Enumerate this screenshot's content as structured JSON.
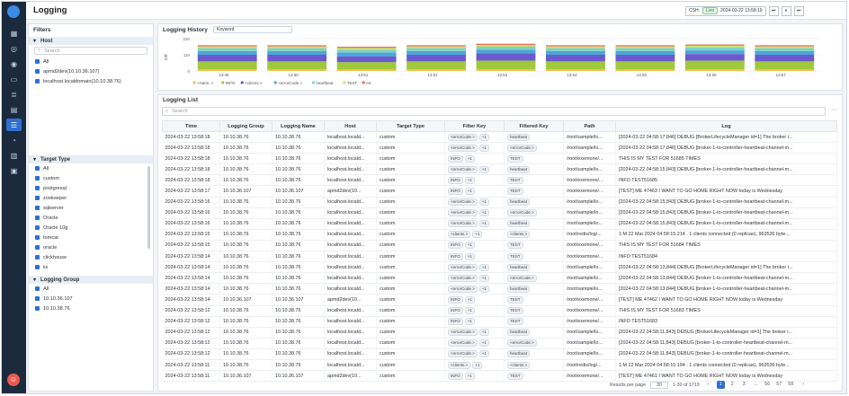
{
  "app": {
    "title": "Logging"
  },
  "nav": {
    "icons": [
      "dashboard-icon",
      "topology-icon",
      "eye-icon",
      "monitor-icon",
      "database-icon",
      "chart-icon",
      "logging-icon",
      "bell-icon",
      "report-icon",
      "document-icon"
    ],
    "active_index": 6
  },
  "time_control": {
    "label": "CSH:",
    "live": "Live",
    "datetime": "2024-03-22 13:58:19",
    "buttons": [
      "⏮",
      "⏸",
      "⏭"
    ]
  },
  "filters": {
    "title": "Filters",
    "host": {
      "title": "Host",
      "search_placeholder": "Search",
      "items": [
        "All",
        "apmd2dev(10.10.36.107)",
        "localhost.localdomain(10.10.38.76)"
      ]
    },
    "target_type": {
      "title": "Target Type",
      "items": [
        "All",
        "custom",
        "postgresql",
        "zookeeper",
        "sqlserver",
        "Oracle",
        "Oracle 10g",
        "tomcat",
        "oracle",
        "clickhouse",
        "iis"
      ]
    },
    "logging_group": {
      "title": "Logging Group",
      "items": [
        "All",
        "10.10.36.107",
        "10.10.38.76"
      ]
    }
  },
  "history": {
    "title": "Logging History",
    "keyword": "Keyword"
  },
  "chart_data": {
    "type": "bar",
    "ylabel": "cnt",
    "yticks": [
      "220",
      "110",
      "0"
    ],
    "ylim": [
      0,
      220
    ],
    "categories": [
      "13:49",
      "13:50",
      "13:51",
      "13:52",
      "13:53",
      "13:54",
      "13:55",
      "13:56",
      "13:57"
    ],
    "series": [
      {
        "name": "<Hann..>",
        "color": "#f2c14e",
        "values": [
          10,
          10,
          10,
          10,
          10,
          10,
          10,
          10,
          10
        ]
      },
      {
        "name": "INFO",
        "color": "#9fc93b",
        "values": [
          55,
          55,
          50,
          55,
          60,
          55,
          55,
          60,
          55
        ]
      },
      {
        "name": "<clients.>",
        "color": "#6a5acd",
        "values": [
          45,
          45,
          40,
          45,
          50,
          45,
          45,
          45,
          45
        ]
      },
      {
        "name": "<errorCode.>",
        "color": "#4ea5d9",
        "values": [
          25,
          25,
          25,
          25,
          25,
          25,
          25,
          25,
          25
        ]
      },
      {
        "name": "heartbeat",
        "color": "#7fd1c7",
        "values": [
          20,
          20,
          20,
          20,
          20,
          20,
          20,
          20,
          20
        ]
      },
      {
        "name": "TEST",
        "color": "#c8e06b",
        "values": [
          12,
          12,
          12,
          12,
          12,
          12,
          12,
          12,
          12
        ]
      },
      {
        "name": "err",
        "color": "#e86f5b",
        "values": [
          8,
          8,
          8,
          8,
          8,
          8,
          8,
          8,
          8
        ]
      }
    ]
  },
  "list": {
    "title": "Logging List",
    "search_placeholder": "Search",
    "columns": [
      "Time",
      "Logging Group",
      "Logging Name",
      "Host",
      "Target Type",
      "Filter Key",
      "Filtered Key",
      "Path",
      "Log"
    ],
    "rows": [
      [
        "2024-03-22 13:58:18",
        "10.10.38.76",
        "10.10.38.76",
        "localhost.locald...",
        "custom",
        [
          "<errorCode.>",
          "+1"
        ],
        [
          "heartbeat"
        ],
        "/root/sample/lo...",
        "[2024-03-22 04:58:17,846] DEBUG [BrokerLifecycleManager id=1] The broker i..."
      ],
      [
        "2024-03-22 13:58:18",
        "10.10.38.76",
        "10.10.38.76",
        "localhost.locald...",
        "custom",
        [
          "<errorCode.>",
          "+1"
        ],
        [
          "<errorCode.>"
        ],
        "/root/sample/lo...",
        "[2024-03-22 04:58:17,846] DEBUG [broker-1-to-controller-heartbeat-channel-m..."
      ],
      [
        "2024-03-22 13:58:18",
        "10.10.38.76",
        "10.10.38.76",
        "localhost.locald...",
        "custom",
        [
          "INFO",
          "+1"
        ],
        [
          "TEST"
        ],
        "/root/exemone/...",
        "THIS IS MY TEST FOR 51685 TIMES"
      ],
      [
        "2024-03-22 13:58:18",
        "10.10.38.76",
        "10.10.38.76",
        "localhost.locald...",
        "custom",
        [
          "<errorCode.>",
          "+1"
        ],
        [
          "heartbeat"
        ],
        "/root/sample/lo...",
        "[2024-03-22 04:58:15,843] DEBUG [broker-1-to-controller-heartbeat-channel-m..."
      ],
      [
        "2024-03-22 13:58:18",
        "10.10.38.76",
        "10.10.38.76",
        "localhost.locald...",
        "custom",
        [
          "INFO",
          "+1"
        ],
        [
          "TEST"
        ],
        "/root/exemone/...",
        "INFO TEST51685"
      ],
      [
        "2024-03-22 13:58:17",
        "10.10.36.107",
        "10.10.36.107",
        "apmd2dev(10...",
        "custom",
        [
          "INFO",
          "+1"
        ],
        [
          "TEST"
        ],
        "/root/exemone/...",
        "[TEST] ME 47463 I WANT TO GO HOME RIGHT NOW today is Wednesday"
      ],
      [
        "2024-03-22 13:58:16",
        "10.10.38.76",
        "10.10.38.76",
        "localhost.locald...",
        "custom",
        [
          "<errorCode.>",
          "+1"
        ],
        [
          "heartbeat"
        ],
        "/root/sample/lo...",
        "[2024-03-22 04:58:15,843] DEBUG [broker-1-to-controller-heartbeat-channel-m..."
      ],
      [
        "2024-03-22 13:58:16",
        "10.10.38.76",
        "10.10.38.76",
        "localhost.locald...",
        "custom",
        [
          "<errorCode.>",
          "+1"
        ],
        [
          "<errorCode.>"
        ],
        "/root/sample/lo...",
        "[2024-03-22 04:58:15,843] DEBUG [broker-1-to-controller-heartbeat-channel-m..."
      ],
      [
        "2024-03-22 13:58:16",
        "10.10.38.76",
        "10.10.38.76",
        "localhost.locald...",
        "custom",
        [
          "<errorCode.>",
          "+1"
        ],
        [
          "heartbeat"
        ],
        "/root/sample/lo...",
        "[2024-03-22 04:58:15,843] DEBUG [broker-1-to-controller-heartbeat-channel-m..."
      ],
      [
        "2024-03-22 13:58:15",
        "10.10.38.76",
        "10.10.38.76",
        "localhost.locald...",
        "custom",
        [
          "<clients.>",
          "+1"
        ],
        [
          "<clients.>"
        ],
        "/root/redis/log/...",
        "1:M 22 Mar 2024 04:58:15.214 . 1 clients connected (0 replicas), 963536 byte..."
      ],
      [
        "2024-03-22 13:58:15",
        "10.10.38.76",
        "10.10.38.76",
        "localhost.locald...",
        "custom",
        [
          "INFO",
          "+1"
        ],
        [
          "TEST"
        ],
        "/root/exemone/...",
        "THIS IS MY TEST FOR 51684 TIMES"
      ],
      [
        "2024-03-22 13:58:14",
        "10.10.38.76",
        "10.10.38.76",
        "localhost.locald...",
        "custom",
        [
          "INFO",
          "+1"
        ],
        [
          "TEST"
        ],
        "/root/exemone/...",
        "INFO TEST51684"
      ],
      [
        "2024-03-22 13:58:14",
        "10.10.38.76",
        "10.10.38.76",
        "localhost.locald...",
        "custom",
        [
          "<errorCode.>",
          "+1"
        ],
        [
          "heartbeat"
        ],
        "/root/sample/lo...",
        "[2024-03-22 04:58:13,844] DEBUG [BrokerLifecycleManager id=1] The broker i..."
      ],
      [
        "2024-03-22 13:58:14",
        "10.10.38.76",
        "10.10.38.76",
        "localhost.locald...",
        "custom",
        [
          "<errorCode.>",
          "+1"
        ],
        [
          "<errorCode.>"
        ],
        "/root/sample/lo...",
        "[2024-03-22 04:58:13,844] DEBUG [broker-1-to-controller-heartbeat-channel-m..."
      ],
      [
        "2024-03-22 13:58:14",
        "10.10.38.76",
        "10.10.38.76",
        "localhost.locald...",
        "custom",
        [
          "<errorCode.>",
          "+1"
        ],
        [
          "heartbeat"
        ],
        "/root/sample/lo...",
        "[2024-03-22 04:58:13,844] DEBUG [broker-1-to-controller-heartbeat-channel-m..."
      ],
      [
        "2024-03-22 13:58:14",
        "10.10.36.107",
        "10.10.36.107",
        "apmd2dev(10...",
        "custom",
        [
          "INFO",
          "+1"
        ],
        [
          "TEST"
        ],
        "/root/exemone/...",
        "[TEST] ME 47462 I WANT TO GO HOME RIGHT NOW today is Wednesday"
      ],
      [
        "2024-03-22 13:58:12",
        "10.10.38.76",
        "10.10.38.76",
        "localhost.locald...",
        "custom",
        [
          "INFO",
          "+1"
        ],
        [
          "TEST"
        ],
        "/root/exemone/...",
        "THIS IS MY TEST FOR 51683 TIMES"
      ],
      [
        "2024-03-22 13:58:12",
        "10.10.38.76",
        "10.10.38.76",
        "localhost.locald...",
        "custom",
        [
          "INFO",
          "+1"
        ],
        [
          "TEST"
        ],
        "/root/exemone/...",
        "INFO TEST51683"
      ],
      [
        "2024-03-22 13:58:12",
        "10.10.38.76",
        "10.10.38.76",
        "localhost.locald...",
        "custom",
        [
          "<errorCode.>",
          "+1"
        ],
        [
          "heartbeat"
        ],
        "/root/sample/lo...",
        "[2024-03-22 04:58:11,843] DEBUG [BrokerLifecycleManager id=1] The broker i..."
      ],
      [
        "2024-03-22 13:58:12",
        "10.10.38.76",
        "10.10.38.76",
        "localhost.locald...",
        "custom",
        [
          "<errorCode.>",
          "+1"
        ],
        [
          "<errorCode.>"
        ],
        "/root/sample/lo...",
        "[2024-03-22 04:58:11,843] DEBUG [broker-1-to-controller-heartbeat-channel-m..."
      ],
      [
        "2024-03-22 13:58:12",
        "10.10.38.76",
        "10.10.38.76",
        "localhost.locald...",
        "custom",
        [
          "<errorCode.>",
          "+1"
        ],
        [
          "heartbeat"
        ],
        "/root/sample/lo...",
        "[2024-03-22 04:58:11,843] DEBUG [broker-1-to-controller-heartbeat-channel-m..."
      ],
      [
        "2024-03-22 13:58:11",
        "10.10.38.76",
        "10.10.38.76",
        "localhost.locald...",
        "custom",
        [
          "<clients.>",
          "+1"
        ],
        [
          "<clients.>"
        ],
        "/root/redis/log/...",
        "1:M 22 Mar 2024 04:58:10.194 . 1 clients connected (0 replicas), 963536 byte..."
      ],
      [
        "2024-03-22 13:58:11",
        "10.10.36.107",
        "10.10.36.107",
        "apmd2dev(10...",
        "custom",
        [
          "INFO",
          "+1"
        ],
        [
          "TEST"
        ],
        "/root/exemone/...",
        "[TEST] ME 47461 I WANT TO GO HOME RIGHT NOW today is Wednesday"
      ]
    ],
    "pagination": {
      "label": "Results per page",
      "per_page": "30",
      "range": "1-30 of 1719",
      "pages": [
        "1",
        "2",
        "3",
        "...",
        "56",
        "57",
        "58"
      ],
      "current": "1"
    }
  }
}
